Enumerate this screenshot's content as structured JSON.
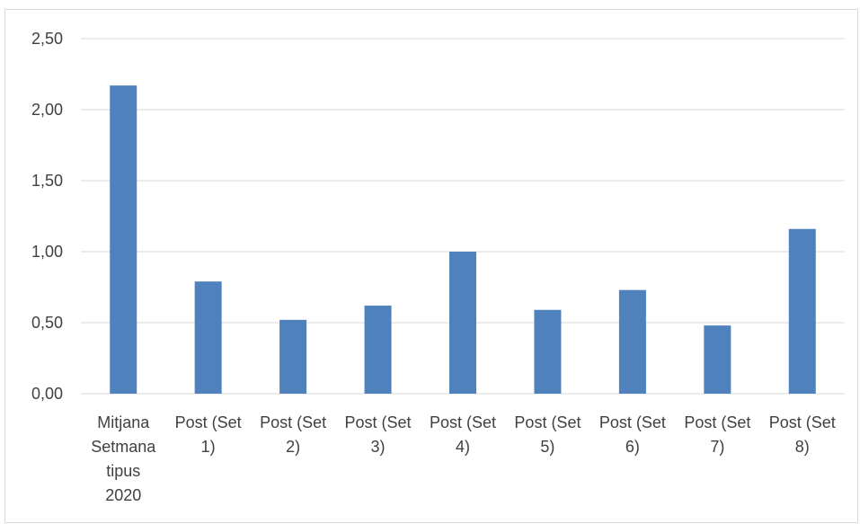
{
  "chart_data": {
    "type": "bar",
    "categories": [
      [
        "Mitjana",
        "Setmana",
        "tipus",
        "2020"
      ],
      [
        "Post (Set",
        "1)"
      ],
      [
        "Post (Set",
        "2)"
      ],
      [
        "Post (Set",
        "3)"
      ],
      [
        "Post (Set",
        "4)"
      ],
      [
        "Post (Set",
        "5)"
      ],
      [
        "Post (Set",
        "6)"
      ],
      [
        "Post (Set",
        "7)"
      ],
      [
        "Post (Set",
        "8)"
      ]
    ],
    "values": [
      2.17,
      0.79,
      0.52,
      0.62,
      1.0,
      0.59,
      0.73,
      0.48,
      1.16
    ],
    "ylim": [
      0,
      2.5
    ],
    "yticks": [
      "0,00",
      "0,50",
      "1,00",
      "1,50",
      "2,00",
      "2,50"
    ],
    "grid": true,
    "bar_color": "#4f81bd",
    "grid_color": "#d9d9d9"
  }
}
